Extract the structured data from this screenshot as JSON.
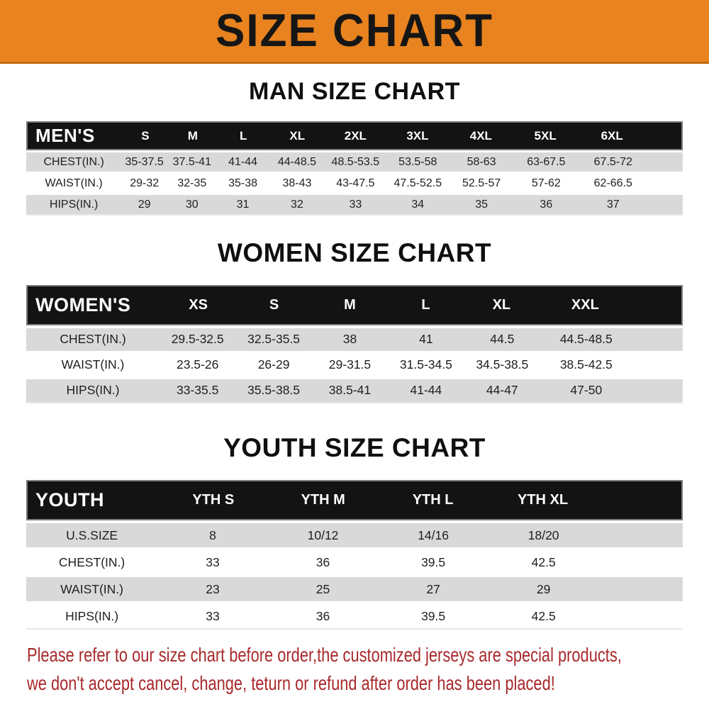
{
  "banner": {
    "title": "SIZE CHART",
    "bg_color": "#E8831F",
    "text_color": "#161616"
  },
  "colors": {
    "header_bg": "#131313",
    "header_text": "#FFFFFF",
    "row_alt_bg": "#D9D9D9",
    "row_bg": "#FFFFFF",
    "notice_text": "#A8292C"
  },
  "sections": {
    "men": {
      "title": "MAN SIZE CHART",
      "header": {
        "label": "MEN'S",
        "sizes": [
          "S",
          "M",
          "L",
          "XL",
          "2XL",
          "3XL",
          "4XL",
          "5XL",
          "6XL"
        ]
      },
      "rows": [
        {
          "label": "CHEST(IN.)",
          "values": [
            "35-37.5",
            "37.5-41",
            "41-44",
            "44-48.5",
            "48.5-53.5",
            "53.5-58",
            "58-63",
            "63-67.5",
            "67.5-72"
          ]
        },
        {
          "label": "WAIST(IN.)",
          "values": [
            "29-32",
            "32-35",
            "35-38",
            "38-43",
            "43-47.5",
            "47.5-52.5",
            "52.5-57",
            "57-62",
            "62-66.5"
          ]
        },
        {
          "label": "HIPS(IN.)",
          "values": [
            "29",
            "30",
            "31",
            "32",
            "33",
            "34",
            "35",
            "36",
            "37"
          ]
        }
      ]
    },
    "women": {
      "title": "WOMEN SIZE CHART",
      "header": {
        "label": "WOMEN'S",
        "sizes": [
          "XS",
          "S",
          "M",
          "L",
          "XL",
          "XXL"
        ]
      },
      "rows": [
        {
          "label": "CHEST(IN.)",
          "values": [
            "29.5-32.5",
            "32.5-35.5",
            "38",
            "41",
            "44.5",
            "44.5-48.5"
          ]
        },
        {
          "label": "WAIST(IN.)",
          "values": [
            "23.5-26",
            "26-29",
            "29-31.5",
            "31.5-34.5",
            "34.5-38.5",
            "38.5-42.5"
          ]
        },
        {
          "label": "HIPS(IN.)",
          "values": [
            "33-35.5",
            "35.5-38.5",
            "38.5-41",
            "41-44",
            "44-47",
            "47-50"
          ]
        }
      ]
    },
    "youth": {
      "title": "YOUTH SIZE CHART",
      "header": {
        "label": "YOUTH",
        "sizes": [
          "YTH S",
          "YTH M",
          "YTH L",
          "YTH XL"
        ]
      },
      "rows": [
        {
          "label": "U.S.SIZE",
          "values": [
            "8",
            "10/12",
            "14/16",
            "18/20"
          ]
        },
        {
          "label": "CHEST(IN.)",
          "values": [
            "33",
            "36",
            "39.5",
            "42.5"
          ]
        },
        {
          "label": "WAIST(IN.)",
          "values": [
            "23",
            "25",
            "27",
            "29"
          ]
        },
        {
          "label": "HIPS(IN.)",
          "values": [
            "33",
            "36",
            "39.5",
            "42.5"
          ]
        }
      ]
    }
  },
  "footer": {
    "line1": "Please refer to our size chart before order,the customized jerseys are special products,",
    "line2": "we don't accept cancel, change, teturn or refund after order has been placed!"
  }
}
